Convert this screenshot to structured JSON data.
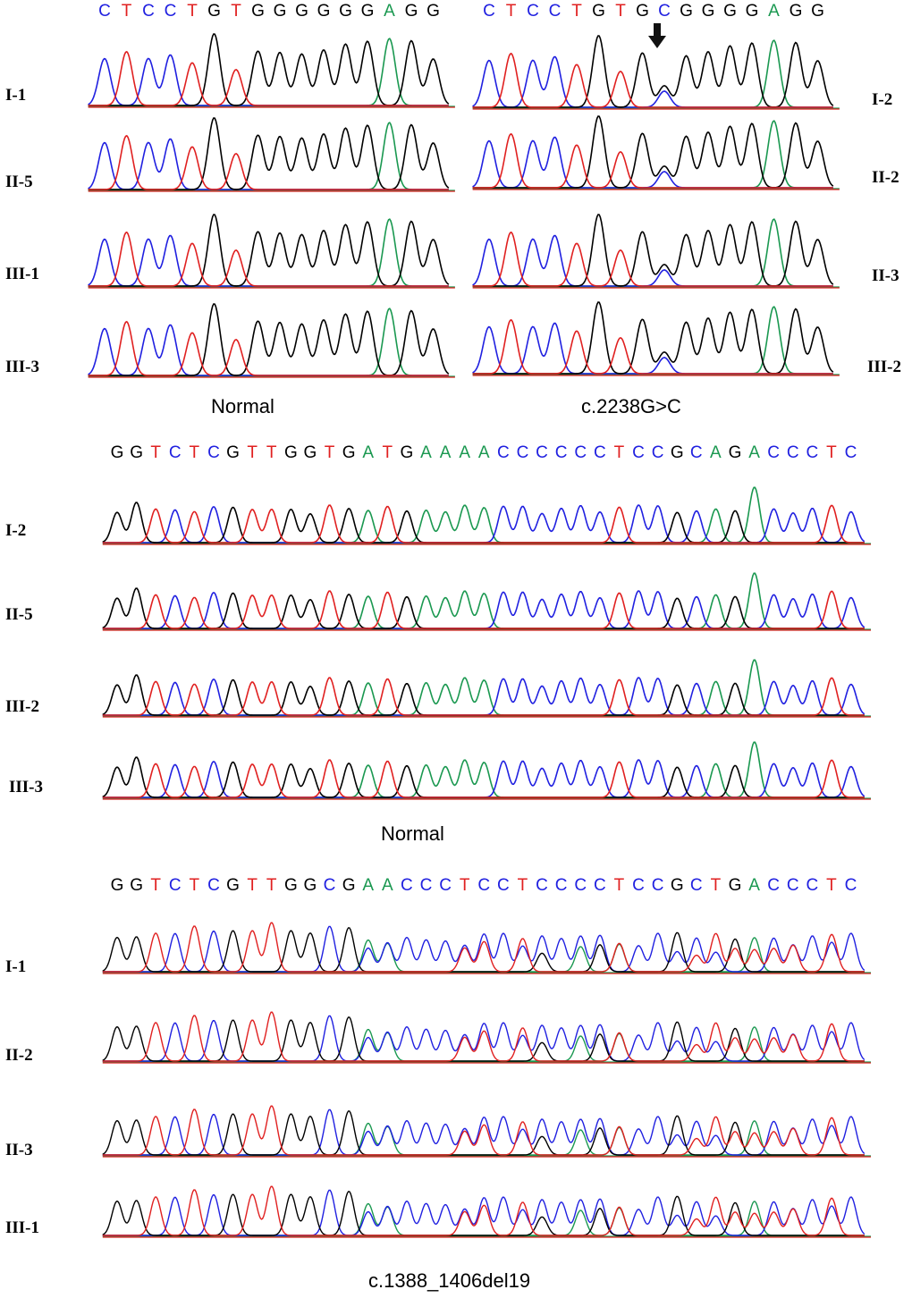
{
  "colors": {
    "A": "#1a9850",
    "C": "#2020e0",
    "G": "#000000",
    "T": "#e02020"
  },
  "panel1": {
    "normal_sequence": "CTCCTGTGGGGGGAGG",
    "mutant_sequence": "CTCCTGTGCGGGGAGG",
    "normal_labels": [
      "I-1",
      "II-5",
      "III-1",
      "III-3"
    ],
    "mutant_labels": [
      "I-2",
      "II-2",
      "II-3",
      "III-2"
    ],
    "normal_caption": "Normal",
    "mutant_caption": "c.2238G>C",
    "arrow": "down-arrow-icon"
  },
  "panel2": {
    "sequence": "GGTCTCGTTGGTGATGAAAACCCCCCTCCGCAGACCCTC",
    "labels": [
      "I-2",
      "II-5",
      "III-2",
      "III-3"
    ],
    "caption": "Normal"
  },
  "panel3": {
    "sequence": "GGTCTCGTTGGCGAACCCTCCTCCCCTCCGCTGACCCTC",
    "labels": [
      "I-1",
      "II-2",
      "II-3",
      "III-1"
    ],
    "caption": "c.1388_1406del19"
  }
}
